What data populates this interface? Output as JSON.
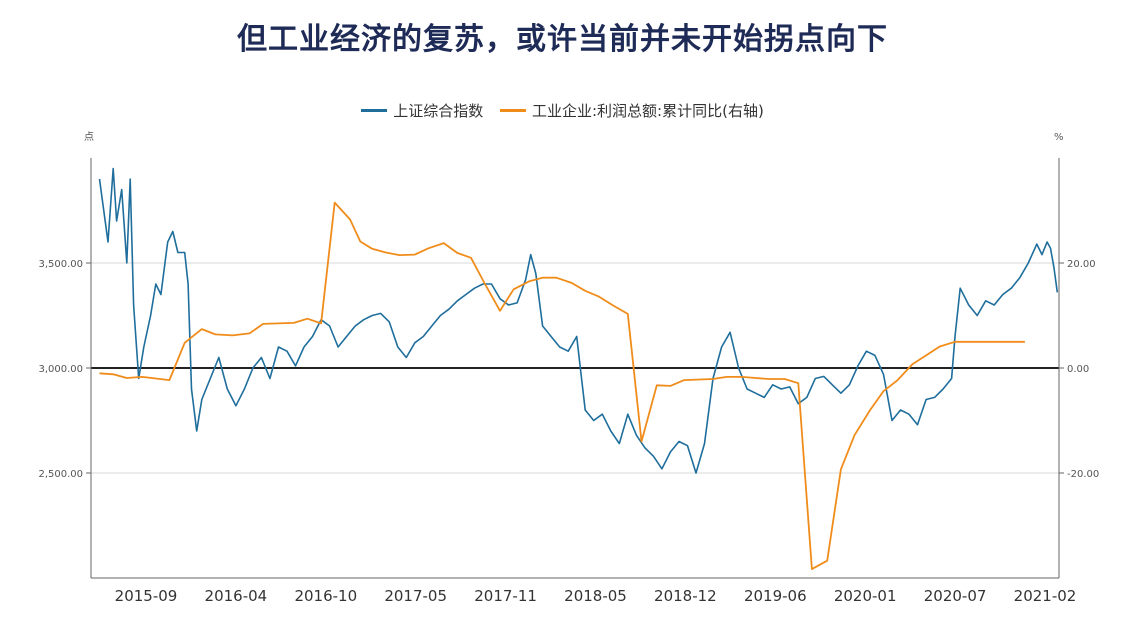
{
  "title": "但工业经济的复苏，或许当前并未开始拐点向下",
  "colors": {
    "sse": "#1f6e9c",
    "profit": "#f08c1a",
    "title": "#1f2b57",
    "zero": "#222222",
    "grid": "#d9d9d9"
  },
  "chart_data": {
    "type": "line",
    "title": "但工业经济的复苏，或许当前并未开始拐点向下",
    "left_unit": "点",
    "right_unit": "%",
    "left_ylim": [
      2000,
      4000
    ],
    "right_ylim": [
      -40,
      40
    ],
    "left_ticks": [
      "2,500.00",
      "3,000.00",
      "3,500.00"
    ],
    "right_ticks": [
      "-20.00",
      "0.00",
      "20.00"
    ],
    "x_tick_labels": [
      "2015-09",
      "2016-04",
      "2016-10",
      "2017-05",
      "2017-11",
      "2018-05",
      "2018-12",
      "2019-06",
      "2020-01",
      "2020-07",
      "2021-02"
    ],
    "legend": [
      "上证综合指数",
      "工业企业:利润总额:累计同比(右轴)"
    ],
    "x_range": [
      2015.45,
      2021.13
    ],
    "series": [
      {
        "name": "上证综合指数",
        "axis": "left",
        "x": [
          2015.5,
          2015.55,
          2015.58,
          2015.6,
          2015.63,
          2015.66,
          2015.68,
          2015.7,
          2015.73,
          2015.76,
          2015.8,
          2015.83,
          2015.86,
          2015.9,
          2015.93,
          2015.96,
          2016.0,
          2016.02,
          2016.04,
          2016.07,
          2016.1,
          2016.15,
          2016.2,
          2016.25,
          2016.3,
          2016.35,
          2016.4,
          2016.45,
          2016.5,
          2016.55,
          2016.6,
          2016.65,
          2016.7,
          2016.75,
          2016.8,
          2016.85,
          2016.9,
          2016.95,
          2017.0,
          2017.05,
          2017.1,
          2017.15,
          2017.2,
          2017.25,
          2017.3,
          2017.35,
          2017.4,
          2017.45,
          2017.5,
          2017.55,
          2017.6,
          2017.65,
          2017.7,
          2017.75,
          2017.8,
          2017.85,
          2017.9,
          2017.95,
          2018.0,
          2018.03,
          2018.06,
          2018.1,
          2018.15,
          2018.2,
          2018.25,
          2018.3,
          2018.35,
          2018.4,
          2018.45,
          2018.5,
          2018.55,
          2018.6,
          2018.65,
          2018.7,
          2018.75,
          2018.8,
          2018.85,
          2018.9,
          2018.95,
          2019.0,
          2019.05,
          2019.1,
          2019.15,
          2019.2,
          2019.25,
          2019.3,
          2019.35,
          2019.4,
          2019.45,
          2019.5,
          2019.55,
          2019.6,
          2019.65,
          2019.7,
          2019.75,
          2019.8,
          2019.85,
          2019.9,
          2019.95,
          2020.0,
          2020.05,
          2020.1,
          2020.15,
          2020.2,
          2020.25,
          2020.3,
          2020.35,
          2020.4,
          2020.45,
          2020.5,
          2020.52,
          2020.55,
          2020.6,
          2020.65,
          2020.7,
          2020.75,
          2020.8,
          2020.85,
          2020.9,
          2020.95,
          2021.0,
          2021.03,
          2021.06,
          2021.08,
          2021.1,
          2021.12
        ],
        "values": [
          3900,
          3600,
          3950,
          3700,
          3850,
          3500,
          3900,
          3300,
          2950,
          3100,
          3250,
          3400,
          3350,
          3600,
          3650,
          3550,
          3550,
          3400,
          2900,
          2700,
          2850,
          2950,
          3050,
          2900,
          2820,
          2900,
          3000,
          3050,
          2950,
          3100,
          3080,
          3010,
          3100,
          3150,
          3230,
          3200,
          3100,
          3150,
          3200,
          3230,
          3250,
          3260,
          3220,
          3100,
          3050,
          3120,
          3150,
          3200,
          3250,
          3280,
          3320,
          3350,
          3380,
          3400,
          3400,
          3330,
          3300,
          3310,
          3420,
          3540,
          3450,
          3200,
          3150,
          3100,
          3080,
          3150,
          2800,
          2750,
          2780,
          2700,
          2640,
          2780,
          2680,
          2620,
          2580,
          2520,
          2600,
          2650,
          2630,
          2500,
          2640,
          2950,
          3100,
          3170,
          3000,
          2900,
          2880,
          2860,
          2920,
          2900,
          2910,
          2830,
          2860,
          2950,
          2960,
          2920,
          2880,
          2920,
          3010,
          3080,
          3060,
          2970,
          2750,
          2800,
          2780,
          2730,
          2850,
          2860,
          2900,
          2950,
          3150,
          3380,
          3300,
          3250,
          3320,
          3300,
          3350,
          3380,
          3430,
          3500,
          3590,
          3540,
          3600,
          3570,
          3480,
          3360
        ]
      },
      {
        "name": "工业企业:利润总额:累计同比(右轴)",
        "axis": "right",
        "x": [
          2015.5,
          2015.58,
          2015.66,
          2015.75,
          2015.83,
          2015.91,
          2016.0,
          2016.1,
          2016.18,
          2016.28,
          2016.38,
          2016.46,
          2016.55,
          2016.64,
          2016.72,
          2016.8,
          2016.88,
          2016.97,
          2017.03,
          2017.1,
          2017.18,
          2017.26,
          2017.35,
          2017.43,
          2017.52,
          2017.6,
          2017.68,
          2017.76,
          2017.85,
          2017.93,
          2018.02,
          2018.1,
          2018.18,
          2018.27,
          2018.35,
          2018.43,
          2018.52,
          2018.6,
          2018.68,
          2018.77,
          2018.85,
          2018.93,
          2019.1,
          2019.18,
          2019.27,
          2019.35,
          2019.43,
          2019.52,
          2019.6,
          2019.68,
          2019.77,
          2019.85,
          2019.93,
          2020.02,
          2020.1,
          2020.18,
          2020.27,
          2020.35,
          2020.43,
          2020.52,
          2020.6,
          2020.68,
          2020.77,
          2020.85,
          2020.93
        ],
        "values": [
          -1.0,
          -1.2,
          -1.9,
          -1.7,
          -2.0,
          -2.3,
          4.8,
          7.4,
          6.4,
          6.2,
          6.6,
          8.4,
          8.5,
          8.6,
          9.4,
          8.5,
          31.5,
          28.3,
          24.1,
          22.7,
          22.0,
          21.5,
          21.6,
          22.8,
          23.8,
          21.9,
          21.0,
          16.1,
          10.9,
          15.0,
          16.5,
          17.2,
          17.2,
          16.2,
          14.7,
          13.6,
          11.8,
          10.3,
          -14.0,
          -3.3,
          -3.4,
          -2.3,
          -2.1,
          -1.7,
          -1.7,
          -1.9,
          -2.1,
          -2.1,
          -2.9,
          -38.3,
          -36.7,
          -19.3,
          -12.8,
          -8.1,
          -4.4,
          -2.4,
          0.7,
          2.4,
          4.1,
          5.0,
          5.0,
          5.0,
          5.0,
          5.0,
          5.0
        ]
      }
    ]
  }
}
